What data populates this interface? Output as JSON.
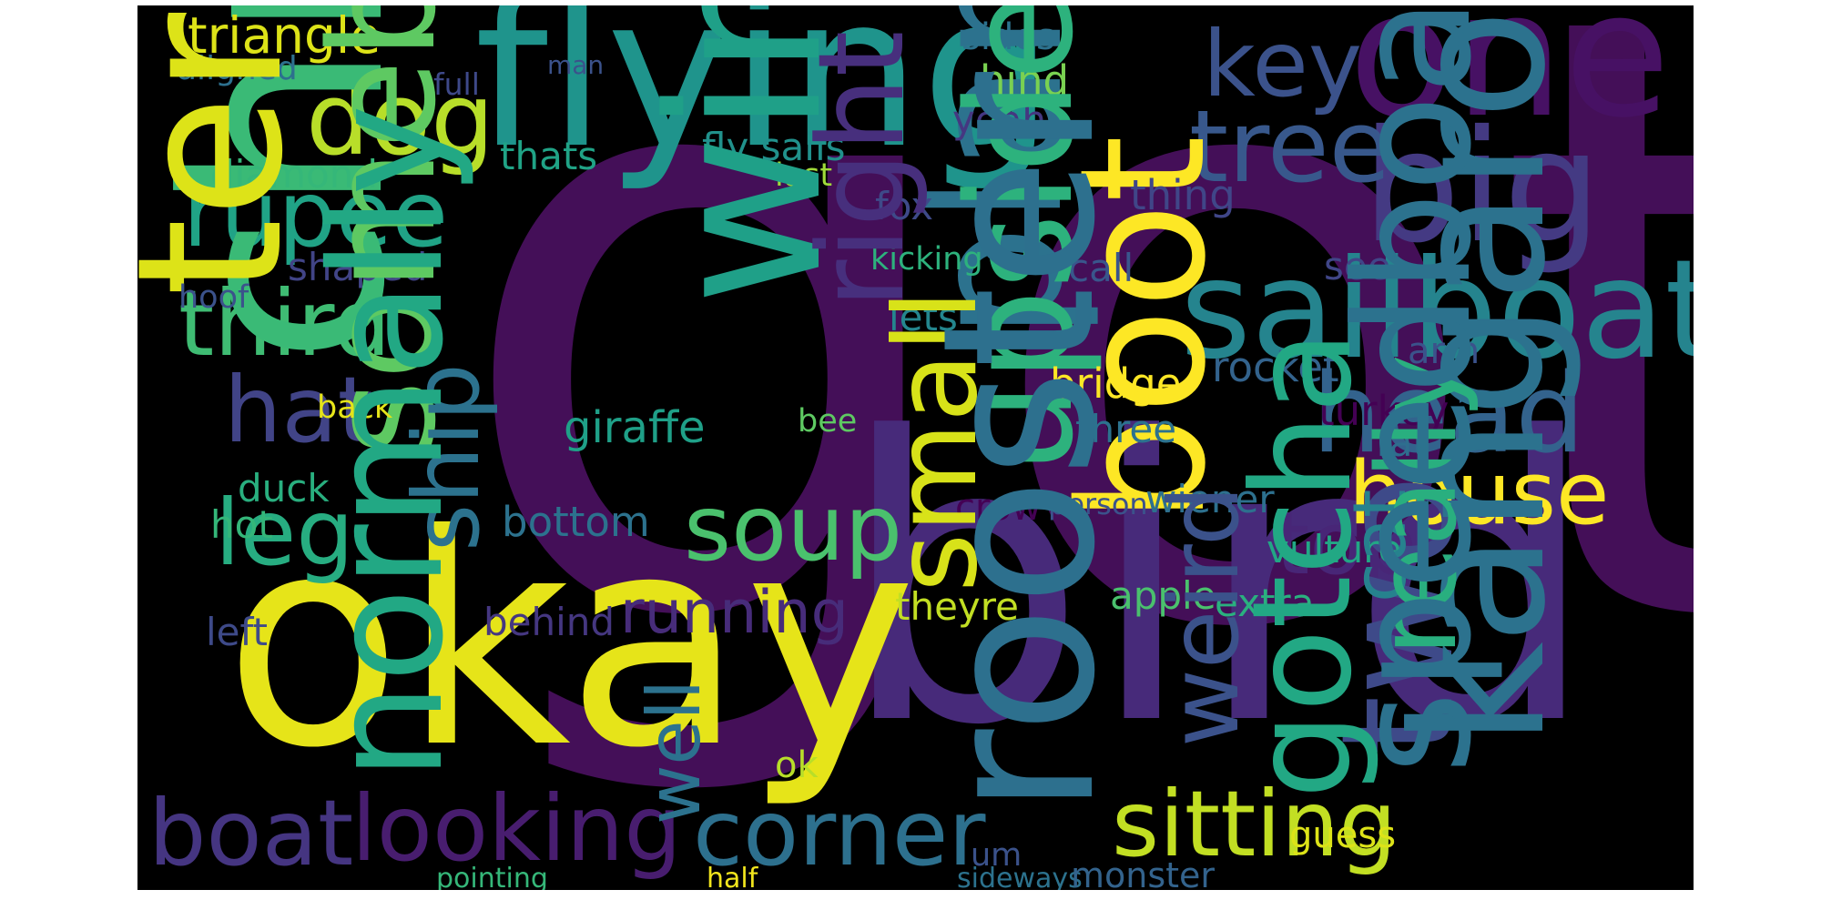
{
  "word_cloud": {
    "background": "#000000",
    "words": [
      {
        "text": "got",
        "color": "#440f58"
      },
      {
        "text": "bird",
        "color": "#472a7a"
      },
      {
        "text": "okay",
        "color": "#e6e419"
      },
      {
        "text": "flying",
        "color": "#1f948c"
      },
      {
        "text": "one",
        "color": "#471164"
      },
      {
        "text": "big",
        "color": "#443a83"
      },
      {
        "text": "sailboat",
        "color": "#25848e"
      },
      {
        "text": "head",
        "color": "#33638d"
      },
      {
        "text": "dog",
        "color": "#b8de29"
      },
      {
        "text": "key",
        "color": "#3b528b"
      },
      {
        "text": "tree",
        "color": "#38588c"
      },
      {
        "text": "rupee",
        "color": "#20a386"
      },
      {
        "text": "third",
        "color": "#3fbc73"
      },
      {
        "text": "hat",
        "color": "#414487"
      },
      {
        "text": "christmas",
        "color": "#3aba76"
      },
      {
        "text": "leg",
        "color": "#27ad81"
      },
      {
        "text": "soup",
        "color": "#4ac16d"
      },
      {
        "text": "plant",
        "color": "#2c728e"
      },
      {
        "text": "house",
        "color": "#fde725"
      },
      {
        "text": "top",
        "color": "#482677"
      },
      {
        "text": "boot",
        "color": "#fde725"
      },
      {
        "text": "triangle",
        "color": "#dde318"
      },
      {
        "text": "boat",
        "color": "#453581"
      },
      {
        "text": "looking",
        "color": "#481d6f"
      },
      {
        "text": "corner",
        "color": "#2d708e"
      },
      {
        "text": "sitting",
        "color": "#c2df23"
      },
      {
        "text": "two",
        "color": "#3e4a89"
      },
      {
        "text": "running",
        "color": "#472c7a"
      },
      {
        "text": "aligned",
        "color": "#2d708e"
      },
      {
        "text": "full",
        "color": "#3e4989"
      },
      {
        "text": "man",
        "color": "#3b528b"
      },
      {
        "text": "sides",
        "color": "#2c728e"
      },
      {
        "text": "hind",
        "color": "#7ad151"
      },
      {
        "text": "yeah",
        "color": "#453781"
      },
      {
        "text": "diamond",
        "color": "#35b779"
      },
      {
        "text": "thats",
        "color": "#20a386"
      },
      {
        "text": "fly sails",
        "color": "#21918c"
      },
      {
        "text": "last",
        "color": "#a0da39"
      },
      {
        "text": "thing",
        "color": "#404688"
      },
      {
        "text": "fox",
        "color": "#3e4a89"
      },
      {
        "text": "teradactyl",
        "color": "#dde318"
      },
      {
        "text": "windmill",
        "color": "#1fa088"
      },
      {
        "text": "shaped",
        "color": "#414487"
      },
      {
        "text": "kicking",
        "color": "#2db27d"
      },
      {
        "text": "call",
        "color": "#39568c"
      },
      {
        "text": "see",
        "color": "#404688"
      },
      {
        "text": "hoof",
        "color": "#3b528b"
      },
      {
        "text": "right",
        "color": "#472f7d"
      },
      {
        "text": "lets",
        "color": "#24868e"
      },
      {
        "text": "arm",
        "color": "#3b528b"
      },
      {
        "text": "upside",
        "color": "#2db27d"
      },
      {
        "text": "bridge",
        "color": "#fde725"
      },
      {
        "text": "rocket",
        "color": "#33638d"
      },
      {
        "text": "somebody",
        "color": "#5ec962"
      },
      {
        "text": "back",
        "color": "#e5e419"
      },
      {
        "text": "giraffe",
        "color": "#1fa088"
      },
      {
        "text": "turkey",
        "color": "#440154"
      },
      {
        "text": "bee",
        "color": "#5ec962"
      },
      {
        "text": "three",
        "color": "#2c728e"
      },
      {
        "text": "fat",
        "color": "#2e6e8e"
      },
      {
        "text": "duck",
        "color": "#29af7f"
      },
      {
        "text": "hot",
        "color": "#34b679"
      },
      {
        "text": "bottom",
        "color": "#2c728e"
      },
      {
        "text": "crow",
        "color": "#440154"
      },
      {
        "text": "person",
        "color": "#3b528b"
      },
      {
        "text": "wiener",
        "color": "#2d708e"
      },
      {
        "text": "ship",
        "color": "#2c728e"
      },
      {
        "text": "small",
        "color": "#d8e219"
      },
      {
        "text": "vulture",
        "color": "#22a785"
      },
      {
        "text": "cat",
        "color": "#26828e"
      },
      {
        "text": "kangaroo",
        "color": "#2c728e"
      },
      {
        "text": "left",
        "color": "#3e4a89"
      },
      {
        "text": "behind",
        "color": "#453781"
      },
      {
        "text": "theyre",
        "color": "#c2df23"
      },
      {
        "text": "apple",
        "color": "#4ac16d"
      },
      {
        "text": "extra",
        "color": "#2ab07f"
      },
      {
        "text": "really",
        "color": "#29af7f"
      },
      {
        "text": "speedboat",
        "color": "#2c728e"
      },
      {
        "text": "normally",
        "color": "#22a884"
      },
      {
        "text": "rooster",
        "color": "#2d708e"
      },
      {
        "text": "weird",
        "color": "#3b528b"
      },
      {
        "text": "gotcha",
        "color": "#22a884"
      },
      {
        "text": "well",
        "color": "#2c728e"
      },
      {
        "text": "ok",
        "color": "#b8de29"
      },
      {
        "text": "guess",
        "color": "#dde318"
      },
      {
        "text": "um",
        "color": "#3b528b"
      },
      {
        "text": "pointing",
        "color": "#35b779"
      },
      {
        "text": "half",
        "color": "#f1e51d"
      },
      {
        "text": "sideways",
        "color": "#2c728e"
      },
      {
        "text": "monster",
        "color": "#33638d"
      }
    ]
  }
}
